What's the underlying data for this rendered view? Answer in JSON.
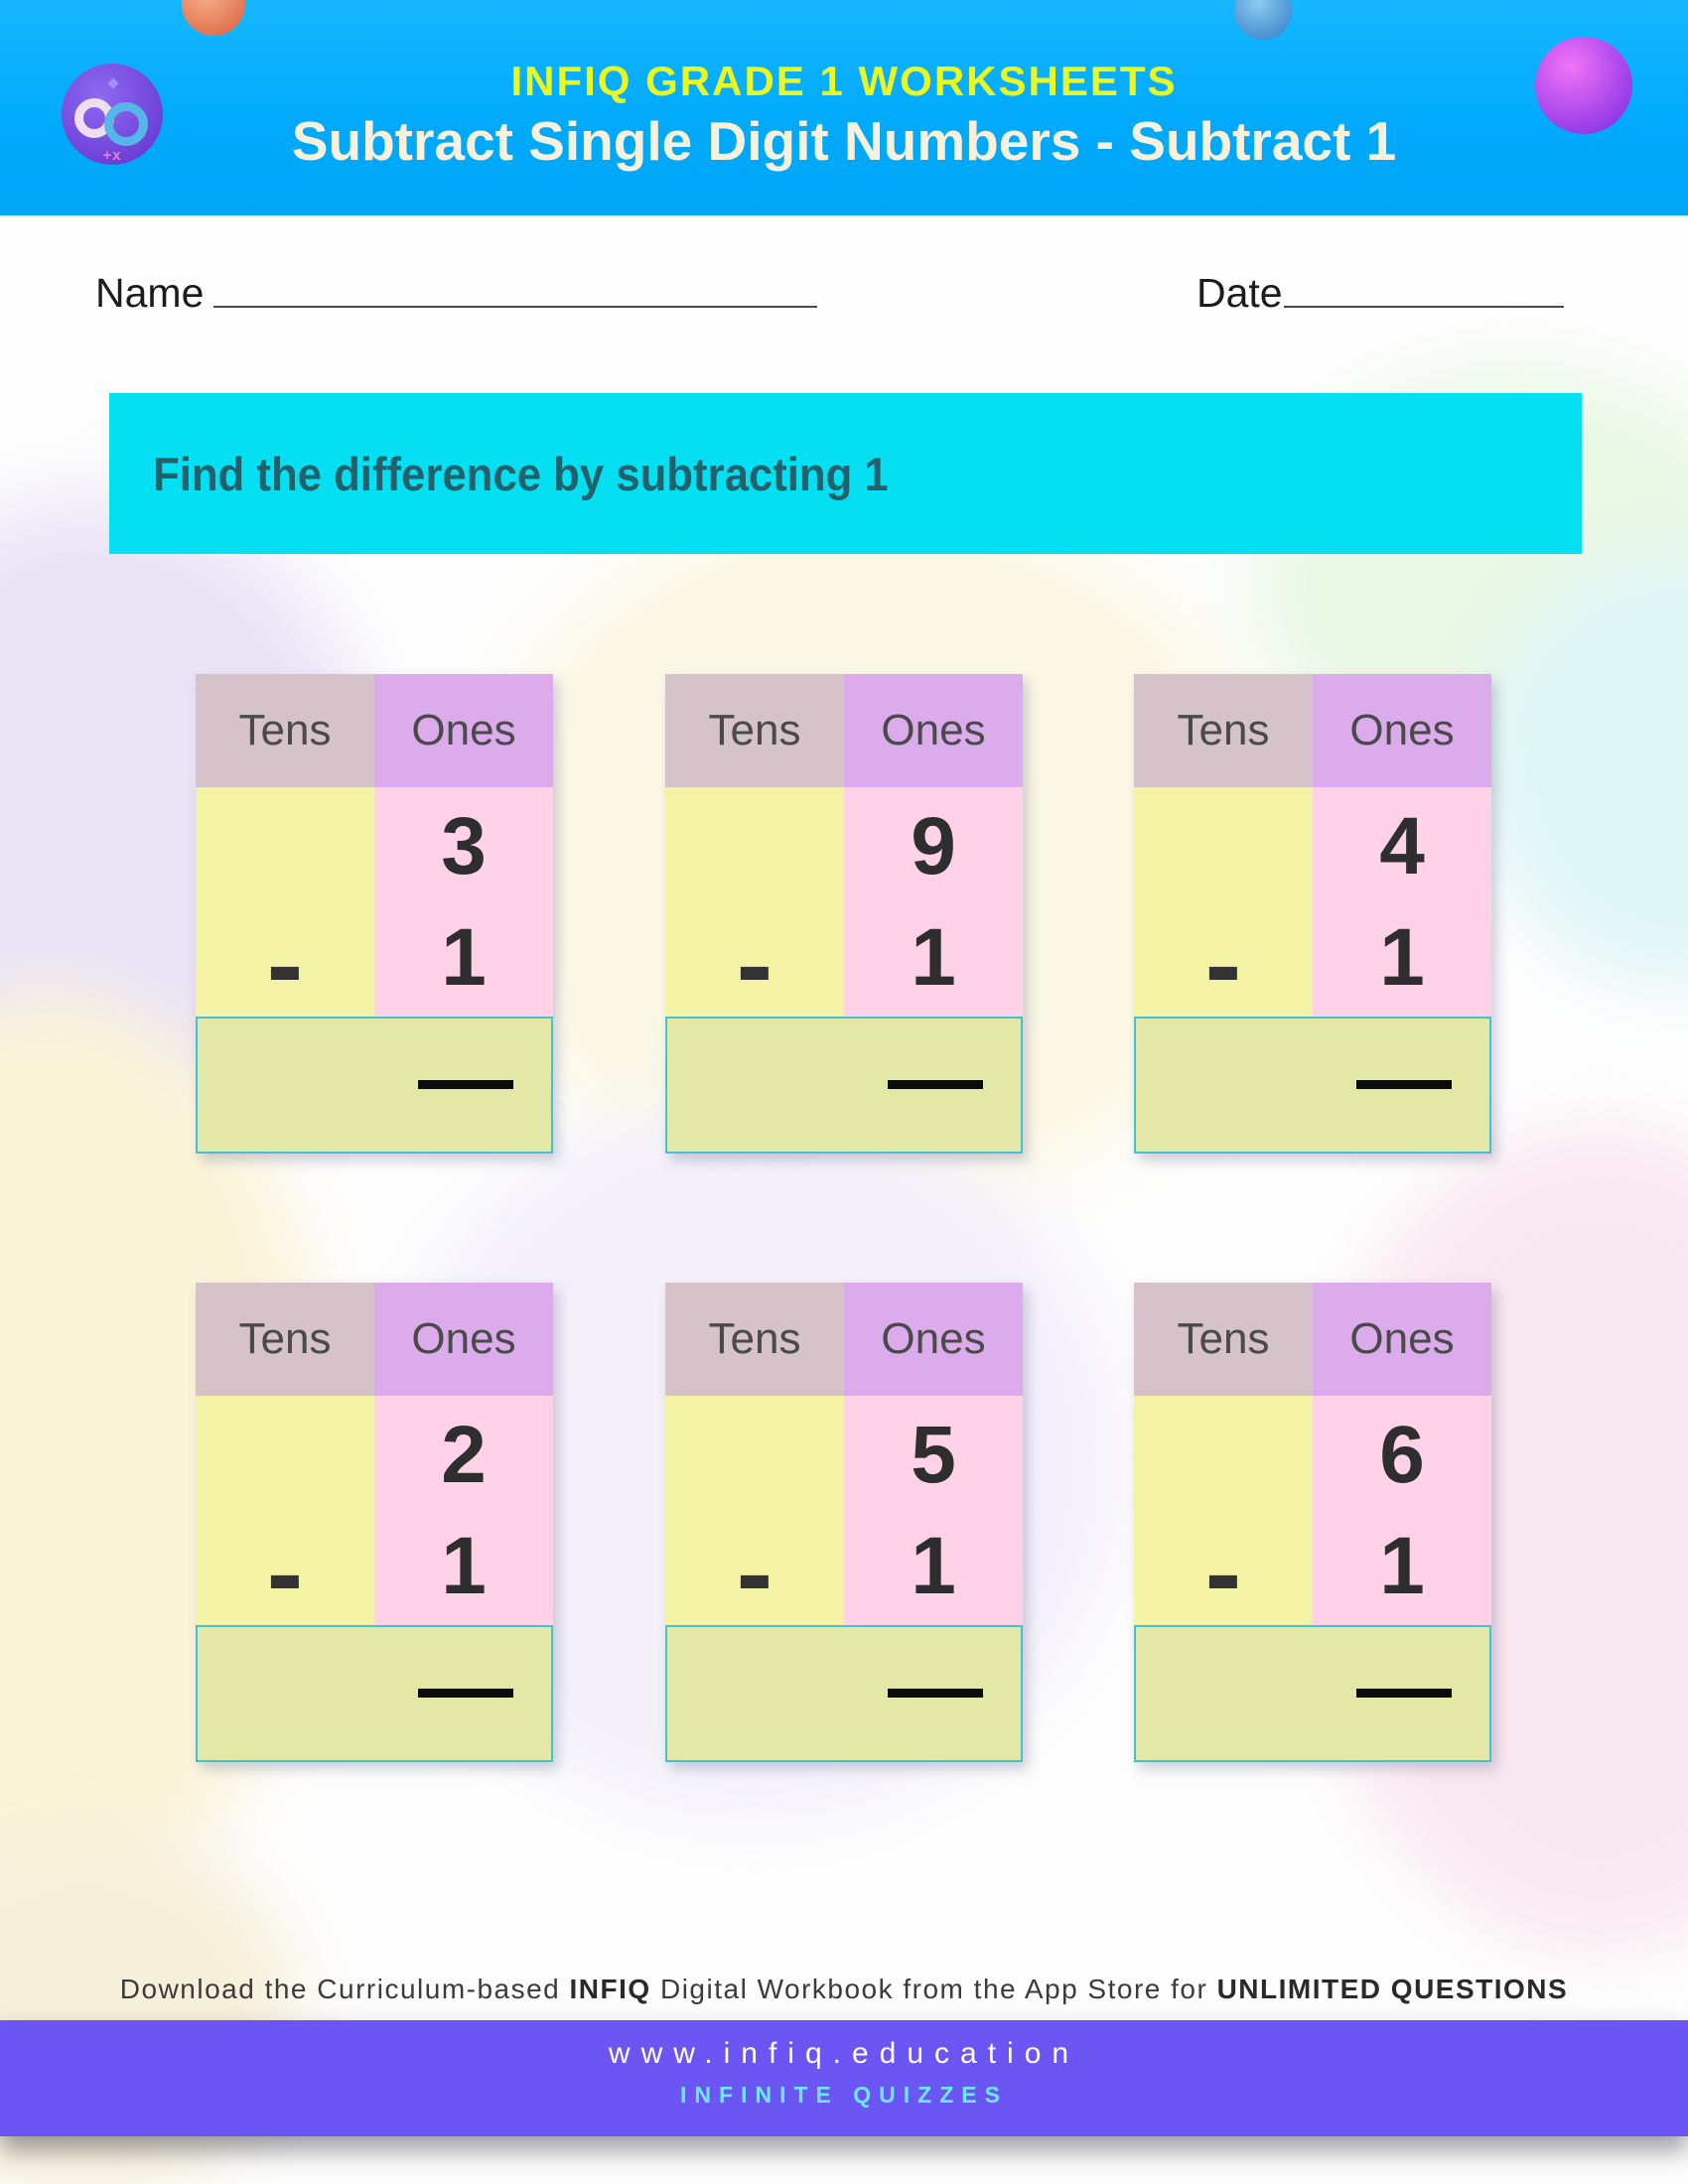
{
  "header": {
    "brand": "INFIQ GRADE 1 WORKSHEETS",
    "title": "Subtract Single Digit Numbers - Subtract 1",
    "logo": {
      "icon": "infinity-icon",
      "sub": "+x"
    }
  },
  "fields": {
    "name_label": "Name",
    "date_label": "Date"
  },
  "instruction": {
    "text": "Find the difference by subtracting 1"
  },
  "card_labels": {
    "tens": "Tens",
    "ones": "Ones",
    "operator": "-"
  },
  "cards": [
    {
      "minuend": "3",
      "subtrahend": "1"
    },
    {
      "minuend": "9",
      "subtrahend": "1"
    },
    {
      "minuend": "4",
      "subtrahend": "1"
    },
    {
      "minuend": "2",
      "subtrahend": "1"
    },
    {
      "minuend": "5",
      "subtrahend": "1"
    },
    {
      "minuend": "6",
      "subtrahend": "1"
    }
  ],
  "footer": {
    "download_pre": "Download the Curriculum-based ",
    "download_bold1": "INFIQ",
    "download_mid": " Digital Workbook from the App Store for ",
    "download_bold2": "UNLIMITED QUESTIONS",
    "website": "www.infiq.education",
    "tagline": "INFINITE QUIZZES"
  },
  "colors": {
    "header_blue": "#00A9FB",
    "brand_yellow": "#E9F821",
    "instruction_cyan": "#04DFF2",
    "tens_header": "#D5C3C9",
    "ones_header": "#DBABEC",
    "tens_body": "#F4F3A5",
    "ones_body": "#FFD2E8",
    "answer_box": "#E3E8A7",
    "answer_border": "#43C2D3",
    "footer_purple": "#6B55F3",
    "tagline_cyan": "#6FE6F7"
  }
}
